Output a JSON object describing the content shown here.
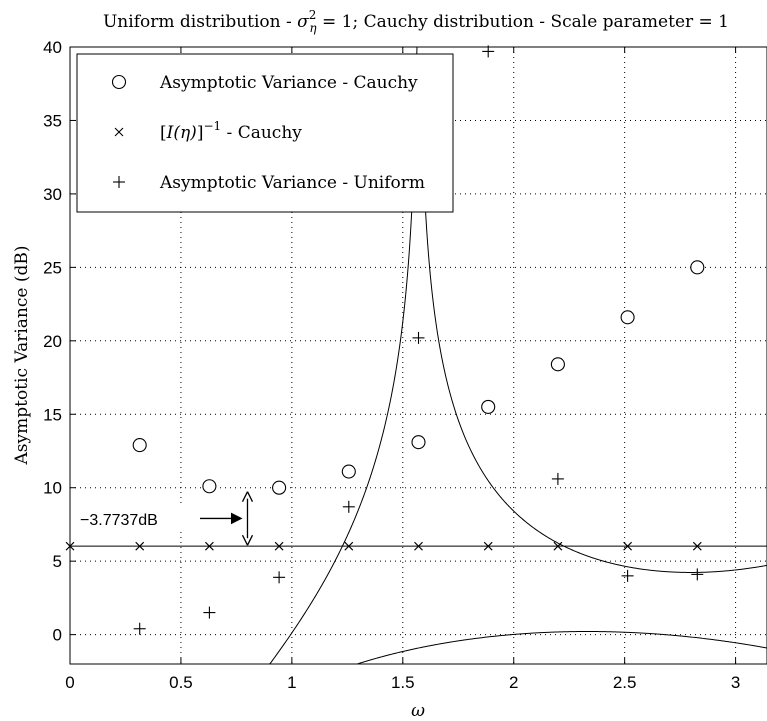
{
  "chart_data": {
    "type": "line",
    "title": "Uniform distribution - σ²η = 1; Cauchy distribution - Scale parameter = 1",
    "title_parts": {
      "prefix": "Uniform distribution - ",
      "sigma": "σ",
      "sup": "2",
      "sub": "η",
      "suffix": " = 1; Cauchy distribution - Scale parameter = 1"
    },
    "xlabel": "ω",
    "ylabel": "Asymptotic Variance (dB)",
    "xlim": [
      0,
      3.14159
    ],
    "ylim": [
      -2,
      40
    ],
    "xticks": [
      0,
      0.5,
      1,
      1.5,
      2,
      2.5,
      3
    ],
    "xtick_labels": [
      "0",
      "0.5",
      "1",
      "1.5",
      "2",
      "2.5",
      "3"
    ],
    "yticks": [
      0,
      5,
      10,
      15,
      20,
      25,
      30,
      35,
      40
    ],
    "ytick_labels": [
      "0",
      "5",
      "10",
      "15",
      "20",
      "25",
      "30",
      "35",
      "40"
    ],
    "grid": true,
    "legend_position": "top-left",
    "series": [
      {
        "name": "Asymptotic Variance - Cauchy",
        "legend_label": "Asymptotic Variance - Cauchy",
        "marker": "circle",
        "x": [
          0.31416,
          0.62832,
          0.94248,
          1.25664,
          1.5708,
          1.88496,
          2.19911,
          2.51327,
          2.82743
        ],
        "y": [
          12.9,
          10.1,
          10.0,
          11.1,
          13.1,
          15.5,
          18.4,
          21.6,
          25.0
        ]
      },
      {
        "name": "[I(η)]⁻¹ - Cauchy",
        "legend_label": "[I(η)]⁻¹ - Cauchy",
        "legend_parts": {
          "pre": "[",
          "italic": "I(η)",
          "post": "]",
          "sup": "−1",
          "tail": " - Cauchy"
        },
        "marker": "x",
        "x": [
          0.0,
          0.31416,
          0.62832,
          0.94248,
          1.25664,
          1.5708,
          1.88496,
          2.19911,
          2.51327,
          2.82743
        ],
        "y": [
          6.02,
          6.02,
          6.02,
          6.02,
          6.02,
          6.02,
          6.02,
          6.02,
          6.02,
          6.02
        ]
      },
      {
        "name": "Asymptotic Variance - Uniform",
        "legend_label": "Asymptotic Variance - Uniform",
        "marker": "plus",
        "x": [
          0.31416,
          0.62832,
          0.94248,
          1.25664,
          1.5708,
          1.88496,
          2.19911,
          2.51327,
          2.82743
        ],
        "y": [
          0.4,
          1.5,
          3.9,
          8.7,
          20.2,
          39.7,
          10.6,
          4.0,
          4.1
        ]
      }
    ],
    "annotation": {
      "label": "−3.7737dB",
      "x": 0.8,
      "y_top": 9.8,
      "y_bottom": 6.02
    }
  }
}
